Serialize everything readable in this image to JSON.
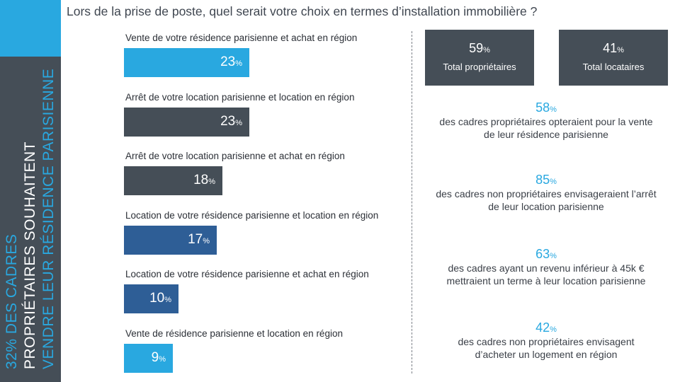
{
  "title": "Lors de la prise de poste, quel serait votre choix en termes d’installation immobilière  ?",
  "side_banner": {
    "line1": "32% DES CADRES",
    "line2": "PROPRIÉTAIRES SOUHAITENT",
    "line3": "VENDRE LEUR RÉSIDENCE PARISIENNE"
  },
  "percent_sign": "%",
  "chart_data": {
    "type": "bar",
    "orientation": "horizontal",
    "title": "",
    "xlabel": "",
    "ylabel": "",
    "unit": "%",
    "categories": [
      "Vente de votre résidence  parisienne et achat en région",
      "Arrêt de votre location parisienne et location en région",
      "Arrêt de votre location parisienne et achat en région",
      "Location de votre résidence  parisienne  et location en région",
      "Location de votre résidence  parisienne  et achat en région",
      "Vente de résidence  parisienne et location en région"
    ],
    "values": [
      23,
      23,
      18,
      17,
      10,
      9
    ],
    "value_labels": [
      "23",
      "23",
      "18",
      "17",
      "10",
      "9"
    ],
    "colors": [
      "#29a8e0",
      "#454e57",
      "#454e57",
      "#2e5e96",
      "#2e5e96",
      "#29a8e0"
    ],
    "grid": false
  },
  "kpis": [
    {
      "value": "59",
      "label": "Total propriétaires"
    },
    {
      "value": "41",
      "label": "Total locataires"
    }
  ],
  "stats": [
    {
      "value": "58",
      "line1": "des cadres propriétaires opteraient pour la vente",
      "line2": "de leur résidence parisienne"
    },
    {
      "value": "85",
      "line1": "des cadres non propriétaires envisageraient l’arrêt",
      "line2": "de leur location parisienne"
    },
    {
      "value": "63",
      "line1": "des cadres ayant un revenu inférieur à 45k €",
      "line2": "mettraient un terme à leur location parisienne"
    },
    {
      "value": "42",
      "line1": "des cadres non propriétaires envisagent",
      "line2": "d’acheter un logement en région"
    }
  ]
}
